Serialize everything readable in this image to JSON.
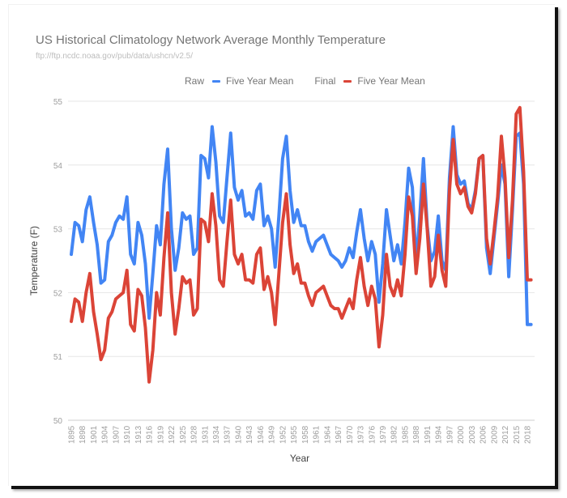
{
  "chart_data": {
    "type": "line",
    "title": "US Historical Climatology Network Average Monthly Temperature",
    "subtitle": "ftp://ftp.ncdc.noaa.gov/pub/data/ushcn/v2.5/",
    "xlabel": "Year",
    "ylabel": "Temperature (F)",
    "ylim": [
      50,
      55
    ],
    "yticks": [
      "50",
      "51",
      "52",
      "53",
      "54",
      "55"
    ],
    "xlim": [
      1895,
      2019
    ],
    "xticks": [
      "1895",
      "1898",
      "1901",
      "1904",
      "1907",
      "1910",
      "1913",
      "1916",
      "1919",
      "1922",
      "1925",
      "1928",
      "1931",
      "1934",
      "1937",
      "1940",
      "1943",
      "1946",
      "1949",
      "1952",
      "1955",
      "1958",
      "1961",
      "1964",
      "1967",
      "1970",
      "1973",
      "1976",
      "1979",
      "1982",
      "1985",
      "1988",
      "1991",
      "1994",
      "1997",
      "2000",
      "2003",
      "2006",
      "2009",
      "2012",
      "2015",
      "2018"
    ],
    "grid": true,
    "legend_position": "top",
    "x_start": 1895,
    "series": [
      {
        "name": "Five Year Mean",
        "group": "Raw",
        "color": "#4285f4",
        "values": [
          52.6,
          53.1,
          53.05,
          52.8,
          53.3,
          53.5,
          53.1,
          52.75,
          52.15,
          52.2,
          52.8,
          52.9,
          53.1,
          53.2,
          53.15,
          53.5,
          52.6,
          52.45,
          53.1,
          52.9,
          52.45,
          51.6,
          52.3,
          53.05,
          52.75,
          53.7,
          54.25,
          53.0,
          52.35,
          52.7,
          53.25,
          53.15,
          53.2,
          52.6,
          52.7,
          54.15,
          54.1,
          53.8,
          54.6,
          54.05,
          53.2,
          53.1,
          53.8,
          54.5,
          53.65,
          53.45,
          53.6,
          53.2,
          53.25,
          53.15,
          53.6,
          53.7,
          53.05,
          53.2,
          53.0,
          52.4,
          53.2,
          54.1,
          54.45,
          53.6,
          53.1,
          53.3,
          53.05,
          53.05,
          52.8,
          52.65,
          52.8,
          52.85,
          52.9,
          52.75,
          52.6,
          52.55,
          52.5,
          52.4,
          52.5,
          52.7,
          52.55,
          52.95,
          53.3,
          52.85,
          52.5,
          52.8,
          52.6,
          51.85,
          52.45,
          53.3,
          52.9,
          52.5,
          52.75,
          52.45,
          53.1,
          53.95,
          53.65,
          52.45,
          53.2,
          54.1,
          53.05,
          52.5,
          52.65,
          53.2,
          52.5,
          52.35,
          53.8,
          54.6,
          53.85,
          53.7,
          53.75,
          53.4,
          53.3,
          53.6,
          54.1,
          54.15,
          52.7,
          52.3,
          52.85,
          53.4,
          54.0,
          53.7,
          52.25,
          53.3,
          54.45,
          54.5,
          53.7,
          51.5,
          51.5
        ]
      },
      {
        "name": "Five Year Mean",
        "group": "Final",
        "color": "#db4437",
        "values": [
          51.55,
          51.9,
          51.85,
          51.55,
          52.0,
          52.3,
          51.7,
          51.35,
          50.95,
          51.1,
          51.6,
          51.7,
          51.9,
          51.95,
          52.0,
          52.35,
          51.5,
          51.4,
          52.05,
          51.95,
          51.45,
          50.6,
          51.1,
          52.0,
          51.65,
          52.55,
          53.25,
          52.0,
          51.35,
          51.75,
          52.25,
          52.15,
          52.2,
          51.65,
          51.75,
          53.15,
          53.1,
          52.8,
          53.55,
          53.05,
          52.2,
          52.1,
          52.8,
          53.45,
          52.6,
          52.45,
          52.6,
          52.2,
          52.2,
          52.15,
          52.6,
          52.7,
          52.05,
          52.25,
          52.0,
          51.5,
          52.3,
          53.1,
          53.55,
          52.75,
          52.3,
          52.45,
          52.15,
          52.15,
          51.95,
          51.8,
          52.0,
          52.05,
          52.1,
          51.95,
          51.8,
          51.75,
          51.75,
          51.6,
          51.75,
          51.9,
          51.75,
          52.2,
          52.55,
          52.1,
          51.8,
          52.1,
          51.9,
          51.15,
          51.65,
          52.6,
          52.1,
          51.95,
          52.2,
          51.95,
          52.6,
          53.5,
          53.2,
          52.3,
          52.85,
          53.7,
          53.0,
          52.1,
          52.25,
          52.9,
          52.35,
          52.1,
          53.6,
          54.4,
          53.7,
          53.55,
          53.65,
          53.35,
          53.25,
          53.55,
          54.1,
          54.15,
          52.85,
          52.45,
          52.95,
          53.5,
          54.45,
          53.8,
          52.55,
          53.45,
          54.8,
          54.9,
          53.9,
          52.2,
          52.2
        ]
      }
    ]
  },
  "legend": {
    "items": [
      {
        "prefix": "Raw",
        "label": "Five Year Mean",
        "color": "#4285f4"
      },
      {
        "prefix": "Final",
        "label": "Five Year Mean",
        "color": "#db4437"
      }
    ]
  }
}
